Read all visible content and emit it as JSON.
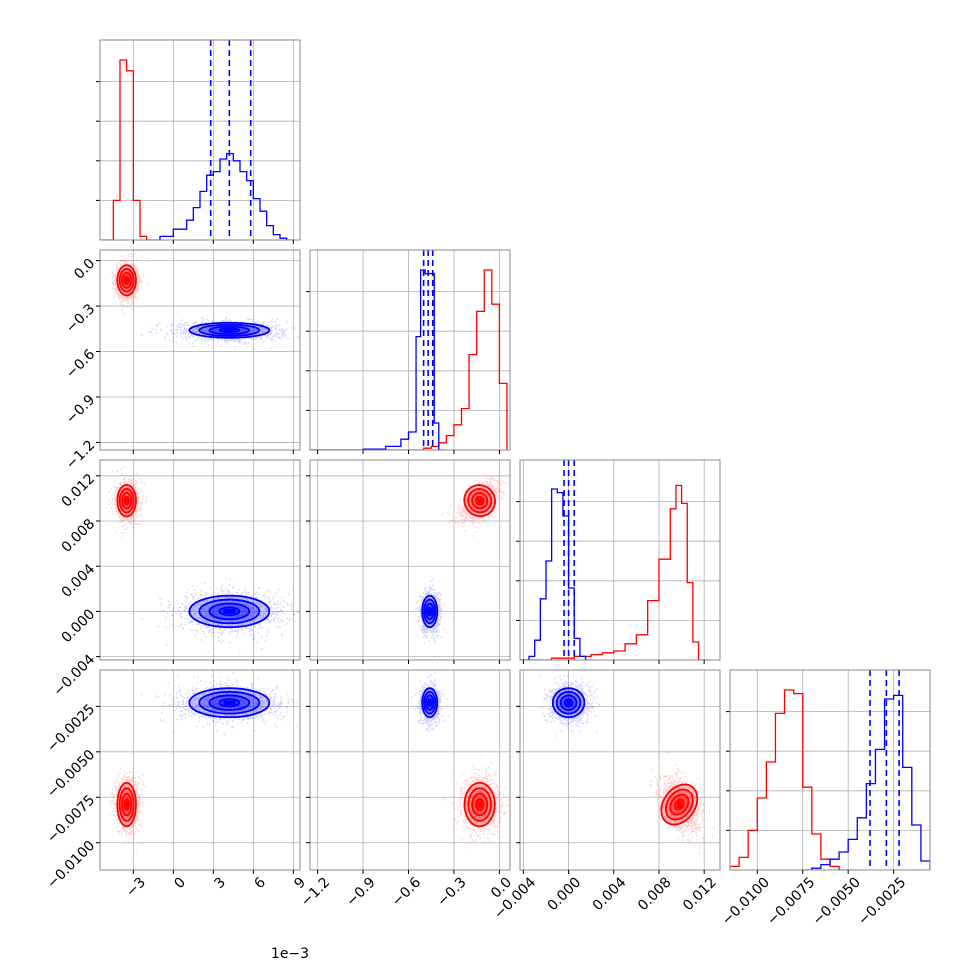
{
  "chart_data": {
    "type": "corner",
    "colors": {
      "red": "#ff0000",
      "blue": "#0000ff"
    },
    "grid": true,
    "offset_text": "1e−3",
    "axes": [
      {
        "id": 0,
        "min": -5.5,
        "max": 9.5,
        "ticks": [
          -3,
          0,
          3,
          6,
          9
        ],
        "tick_labels": [
          "−3",
          "0",
          "3",
          "6",
          "9"
        ]
      },
      {
        "id": 1,
        "min": -1.25,
        "max": 0.07,
        "ticks": [
          -1.2,
          -0.9,
          -0.6,
          -0.3,
          0.0
        ],
        "tick_labels": [
          "−1.2",
          "−0.9",
          "−0.6",
          "−0.3",
          "0.0"
        ]
      },
      {
        "id": 2,
        "min": -0.0043,
        "max": 0.0134,
        "ticks": [
          -0.004,
          0.0,
          0.004,
          0.008,
          0.012
        ],
        "tick_labels": [
          "−0.004",
          "0.000",
          "0.004",
          "0.008",
          "0.012"
        ]
      },
      {
        "id": 3,
        "min": -0.0115,
        "max": -0.0005,
        "ticks": [
          -0.01,
          -0.0075,
          -0.005,
          -0.0025
        ],
        "tick_labels": [
          "−0.0100",
          "−0.0075",
          "−0.0050",
          "−0.0025"
        ]
      }
    ],
    "series": [
      {
        "color": "red",
        "mean": [
          -3.5,
          -0.13,
          0.0098,
          -0.0079
        ],
        "sd": [
          0.35,
          0.05,
          0.0007,
          0.0006
        ],
        "hist": [
          {
            "edges": [
              -5.5,
              -5,
              -4.5,
              -4,
              -3.5,
              -3,
              -2.5,
              -2,
              -1.5,
              -1
            ],
            "counts": [
              0,
              0,
              0.22,
              1.0,
              0.94,
              0.22,
              0.02,
              0,
              0
            ]
          },
          {
            "edges": [
              -1.25,
              -1.1,
              -0.95,
              -0.8,
              -0.65,
              -0.5,
              -0.45,
              -0.4,
              -0.35,
              -0.3,
              -0.25,
              -0.2,
              -0.15,
              -0.1,
              -0.05,
              0.0,
              0.05
            ],
            "counts": [
              0,
              0,
              0,
              0,
              0,
              0.01,
              0.02,
              0.04,
              0.08,
              0.14,
              0.23,
              0.53,
              0.77,
              1.0,
              0.81,
              0.37
            ]
          },
          {
            "edges": [
              -0.0043,
              -0.0015,
              0.0005,
              0.002,
              0.003,
              0.004,
              0.005,
              0.006,
              0.007,
              0.008,
              0.009,
              0.0095,
              0.01,
              0.0105,
              0.011,
              0.0115,
              0.0125
            ],
            "counts": [
              0,
              0.01,
              0.02,
              0.03,
              0.04,
              0.05,
              0.09,
              0.14,
              0.33,
              0.56,
              0.84,
              0.97,
              0.87,
              0.43,
              0.1,
              0.0
            ]
          },
          {
            "edges": [
              -0.0115,
              -0.011,
              -0.0105,
              -0.01,
              -0.0095,
              -0.009,
              -0.0085,
              -0.008,
              -0.0075,
              -0.007,
              -0.0065,
              -0.006,
              -0.0055,
              -0.005,
              -0.0045
            ],
            "counts": [
              0.02,
              0.07,
              0.22,
              0.4,
              0.6,
              0.87,
              1.0,
              0.98,
              0.46,
              0.2,
              0.06,
              0.02,
              0,
              0
            ]
          }
        ]
      },
      {
        "color": "blue",
        "mean": [
          4.2,
          -0.46,
          0.0,
          -0.0023
        ],
        "sd": [
          1.5,
          0.025,
          0.0007,
          0.0004
        ],
        "quantiles": [
          [
            2.8,
            4.2,
            5.8
          ],
          [
            -0.5,
            -0.47,
            -0.44
          ],
          [
            -0.0004,
            0.0,
            0.0005
          ],
          [
            -0.0038,
            -0.0029,
            -0.0022
          ]
        ],
        "hist": [
          {
            "edges": [
              -1,
              0,
              1,
              1.5,
              2,
              2.5,
              3,
              3.5,
              4,
              4.5,
              5,
              5.5,
              6,
              6.5,
              7,
              7.5,
              8,
              8.5,
              9
            ],
            "counts": [
              0.02,
              0.06,
              0.11,
              0.18,
              0.27,
              0.36,
              0.38,
              0.45,
              0.48,
              0.44,
              0.38,
              0.33,
              0.23,
              0.16,
              0.08,
              0.03,
              0.01,
              0
            ]
          },
          {
            "edges": [
              -1.25,
              -0.9,
              -0.75,
              -0.65,
              -0.6,
              -0.55,
              -0.52,
              -0.49,
              -0.46,
              -0.43,
              -0.4,
              -0.35
            ],
            "counts": [
              0,
              0.005,
              0.02,
              0.06,
              0.1,
              0.63,
              1.0,
              0.98,
              0.98,
              0.15,
              0.0
            ]
          },
          {
            "edges": [
              -0.0043,
              -0.0035,
              -0.003,
              -0.0025,
              -0.002,
              -0.0015,
              -0.001,
              -0.0005,
              0.0,
              0.0005,
              0.001,
              0.0015,
              0.002
            ],
            "counts": [
              0.0,
              0.02,
              0.11,
              0.34,
              0.55,
              0.95,
              0.93,
              0.8,
              0.4,
              0.12,
              0.02,
              0
            ]
          },
          {
            "edges": [
              -0.0075,
              -0.007,
              -0.0065,
              -0.006,
              -0.0055,
              -0.005,
              -0.0045,
              -0.004,
              -0.0035,
              -0.003,
              -0.0025,
              -0.002,
              -0.0015,
              -0.001,
              -0.0005
            ],
            "counts": [
              0,
              0.01,
              0.03,
              0.06,
              0.1,
              0.17,
              0.29,
              0.48,
              0.67,
              0.95,
              0.97,
              0.57,
              0.25,
              0.05
            ]
          }
        ]
      }
    ]
  }
}
